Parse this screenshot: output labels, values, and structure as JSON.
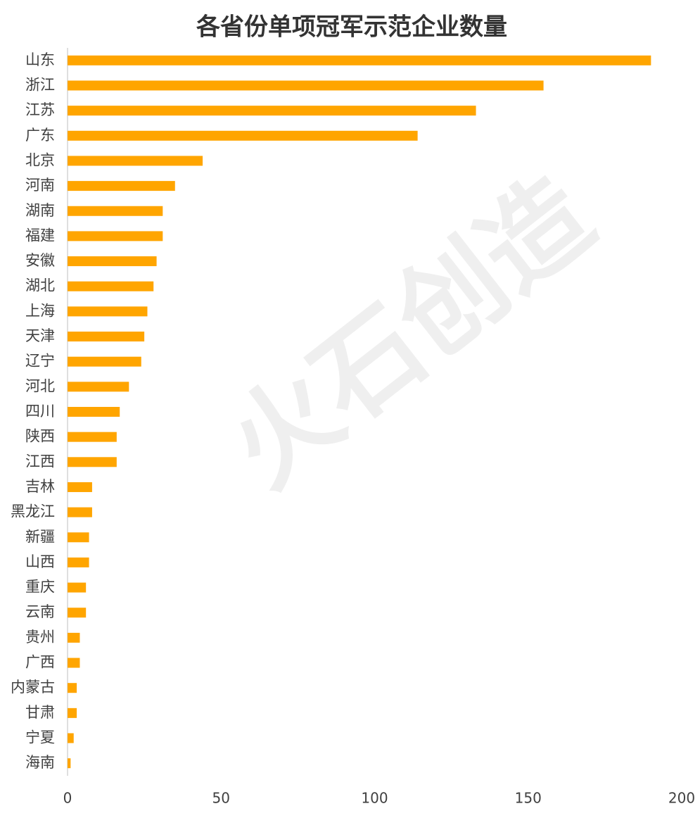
{
  "chart_data": {
    "type": "barh",
    "title": "各省份单项冠军示范企业数量",
    "watermark": "火石创造",
    "categories": [
      "山东",
      "浙江",
      "江苏",
      "广东",
      "北京",
      "河南",
      "湖南",
      "福建",
      "安徽",
      "湖北",
      "上海",
      "天津",
      "辽宁",
      "河北",
      "四川",
      "陕西",
      "江西",
      "吉林",
      "黑龙江",
      "新疆",
      "山西",
      "重庆",
      "云南",
      "贵州",
      "广西",
      "内蒙古",
      "甘肃",
      "宁夏",
      "海南"
    ],
    "values": [
      190,
      155,
      133,
      114,
      44,
      35,
      31,
      31,
      29,
      28,
      26,
      25,
      24,
      20,
      17,
      16,
      16,
      8,
      8,
      7,
      7,
      6,
      6,
      4,
      4,
      3,
      3,
      2,
      1
    ],
    "color": "#ffa500",
    "xlim": [
      0,
      200
    ],
    "xticks": [
      0,
      50,
      100,
      150,
      200
    ],
    "grid": false
  }
}
